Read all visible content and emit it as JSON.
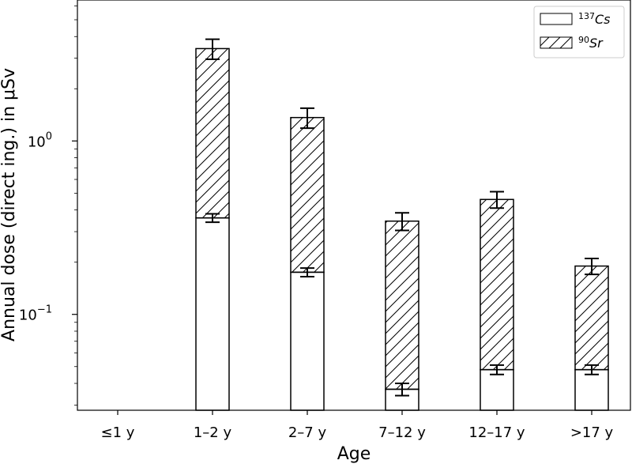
{
  "chart_data": {
    "type": "bar",
    "stacked": true,
    "scale": "log",
    "xlabel": "Age",
    "ylabel": "Annual dose (direct ing.) in μSv",
    "categories": [
      "≤1 y",
      "1–2 y",
      "2–7 y",
      "7–12 y",
      "12–17 y",
      ">17 y"
    ],
    "ylim": [
      0.028,
      6.5
    ],
    "yticks": [
      {
        "value": 1,
        "base": "10",
        "exp": "0"
      },
      {
        "value": 0.1,
        "base": "10",
        "exp": "−1"
      }
    ],
    "series": [
      {
        "name_sup": "137",
        "name_main": "Cs",
        "pattern": "none",
        "values": [
          null,
          0.36,
          0.175,
          0.037,
          0.048,
          0.048
        ],
        "errors": [
          null,
          0.02,
          0.01,
          0.003,
          0.003,
          0.003
        ]
      },
      {
        "name_sup": "90",
        "name_main": "Sr",
        "pattern": "hatch",
        "values": [
          null,
          3.05,
          1.19,
          0.308,
          0.412,
          0.142
        ],
        "errors": [
          null,
          0.45,
          0.18,
          0.04,
          0.05,
          0.02
        ]
      }
    ],
    "legend": "top-right"
  }
}
